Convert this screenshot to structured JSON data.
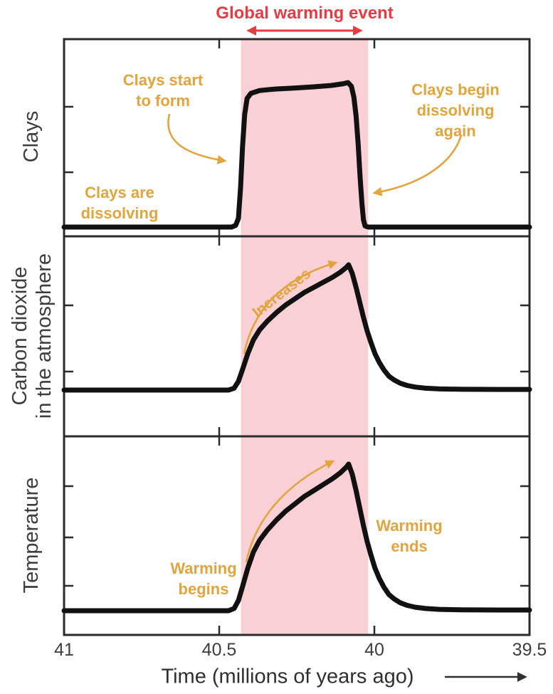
{
  "header": {
    "title": "Global warming event"
  },
  "colors": {
    "warming_band": "#f9d0d5",
    "event_red": "#e73b44",
    "annotation_orange": "#e2a43c",
    "curve_black": "#111111",
    "axis_dark": "#2b2b2b",
    "label_gray": "#3d3d3d"
  },
  "annotations": {
    "clays_start": "Clays start\nto form",
    "clays_dissolving": "Clays are\ndissolving",
    "clays_begin_dissolving": "Clays begin\ndissolving again",
    "co2_increases": "Increases",
    "warming_begins": "Warming\nbegins",
    "warming_ends": "Warming\nends"
  },
  "chart_data": {
    "type": "line",
    "title": "Global warming event",
    "x_axis": {
      "label": "Time (millions of years ago)",
      "ticks": [
        41,
        40.5,
        40,
        39.5
      ],
      "range": [
        41,
        39.5
      ],
      "direction": "reversed"
    },
    "warming_band": {
      "t_start": 40.43,
      "t_end": 40.02,
      "color": "#f9d0d5",
      "label": "Global warming event"
    },
    "panels": [
      {
        "id": "clays",
        "ylabel": "Clays",
        "series": [
          [
            41,
            0
          ],
          [
            40.46,
            0
          ],
          [
            40.447,
            0.012
          ],
          [
            40.438,
            0.06
          ],
          [
            40.431,
            0.28
          ],
          [
            40.425,
            0.55
          ],
          [
            40.418,
            0.78
          ],
          [
            40.41,
            0.89
          ],
          [
            40.398,
            0.925
          ],
          [
            40.37,
            0.945
          ],
          [
            40.32,
            0.955
          ],
          [
            40.26,
            0.962
          ],
          [
            40.2,
            0.97
          ],
          [
            40.14,
            0.98
          ],
          [
            40.1,
            0.992
          ],
          [
            40.085,
            1
          ],
          [
            40.074,
            0.975
          ],
          [
            40.066,
            0.9
          ],
          [
            40.059,
            0.77
          ],
          [
            40.052,
            0.57
          ],
          [
            40.046,
            0.35
          ],
          [
            40.04,
            0.16
          ],
          [
            40.035,
            0.05
          ],
          [
            40.03,
            0.008
          ],
          [
            40.02,
            0
          ],
          [
            39.8,
            0
          ],
          [
            39.5,
            0
          ]
        ]
      },
      {
        "id": "co2",
        "ylabel": "Carbon dioxide\nin the atmosphere",
        "series": [
          [
            41,
            0
          ],
          [
            40.47,
            0
          ],
          [
            40.452,
            0.015
          ],
          [
            40.438,
            0.07
          ],
          [
            40.424,
            0.17
          ],
          [
            40.408,
            0.29
          ],
          [
            40.39,
            0.4
          ],
          [
            40.37,
            0.48
          ],
          [
            40.345,
            0.55
          ],
          [
            40.315,
            0.62
          ],
          [
            40.285,
            0.68
          ],
          [
            40.255,
            0.73
          ],
          [
            40.225,
            0.78
          ],
          [
            40.195,
            0.82
          ],
          [
            40.165,
            0.86
          ],
          [
            40.135,
            0.9
          ],
          [
            40.11,
            0.94
          ],
          [
            40.09,
            0.98
          ],
          [
            40.083,
            1
          ],
          [
            40.071,
            0.93
          ],
          [
            40.059,
            0.82
          ],
          [
            40.047,
            0.7
          ],
          [
            40.035,
            0.58
          ],
          [
            40.023,
            0.47
          ],
          [
            40.011,
            0.38
          ],
          [
            39.998,
            0.29
          ],
          [
            39.984,
            0.22
          ],
          [
            39.969,
            0.16
          ],
          [
            39.953,
            0.11
          ],
          [
            39.936,
            0.08
          ],
          [
            39.917,
            0.055
          ],
          [
            39.895,
            0.037
          ],
          [
            39.868,
            0.024
          ],
          [
            39.835,
            0.015
          ],
          [
            39.79,
            0.009
          ],
          [
            39.72,
            0.006
          ],
          [
            39.6,
            0.005
          ],
          [
            39.5,
            0.005
          ]
        ]
      },
      {
        "id": "temperature",
        "ylabel": "Temperature",
        "series": [
          [
            41,
            0
          ],
          [
            40.47,
            0
          ],
          [
            40.452,
            0.015
          ],
          [
            40.438,
            0.07
          ],
          [
            40.424,
            0.17
          ],
          [
            40.408,
            0.29
          ],
          [
            40.39,
            0.4
          ],
          [
            40.37,
            0.48
          ],
          [
            40.345,
            0.55
          ],
          [
            40.315,
            0.62
          ],
          [
            40.285,
            0.68
          ],
          [
            40.255,
            0.73
          ],
          [
            40.225,
            0.78
          ],
          [
            40.195,
            0.82
          ],
          [
            40.165,
            0.86
          ],
          [
            40.135,
            0.9
          ],
          [
            40.11,
            0.94
          ],
          [
            40.09,
            0.98
          ],
          [
            40.083,
            1
          ],
          [
            40.071,
            0.93
          ],
          [
            40.059,
            0.82
          ],
          [
            40.047,
            0.7
          ],
          [
            40.035,
            0.58
          ],
          [
            40.023,
            0.47
          ],
          [
            40.011,
            0.38
          ],
          [
            39.998,
            0.29
          ],
          [
            39.984,
            0.22
          ],
          [
            39.969,
            0.16
          ],
          [
            39.953,
            0.11
          ],
          [
            39.936,
            0.08
          ],
          [
            39.917,
            0.055
          ],
          [
            39.895,
            0.037
          ],
          [
            39.868,
            0.024
          ],
          [
            39.835,
            0.015
          ],
          [
            39.79,
            0.009
          ],
          [
            39.72,
            0.006
          ],
          [
            39.6,
            0.005
          ],
          [
            39.5,
            0.005
          ]
        ]
      }
    ]
  }
}
